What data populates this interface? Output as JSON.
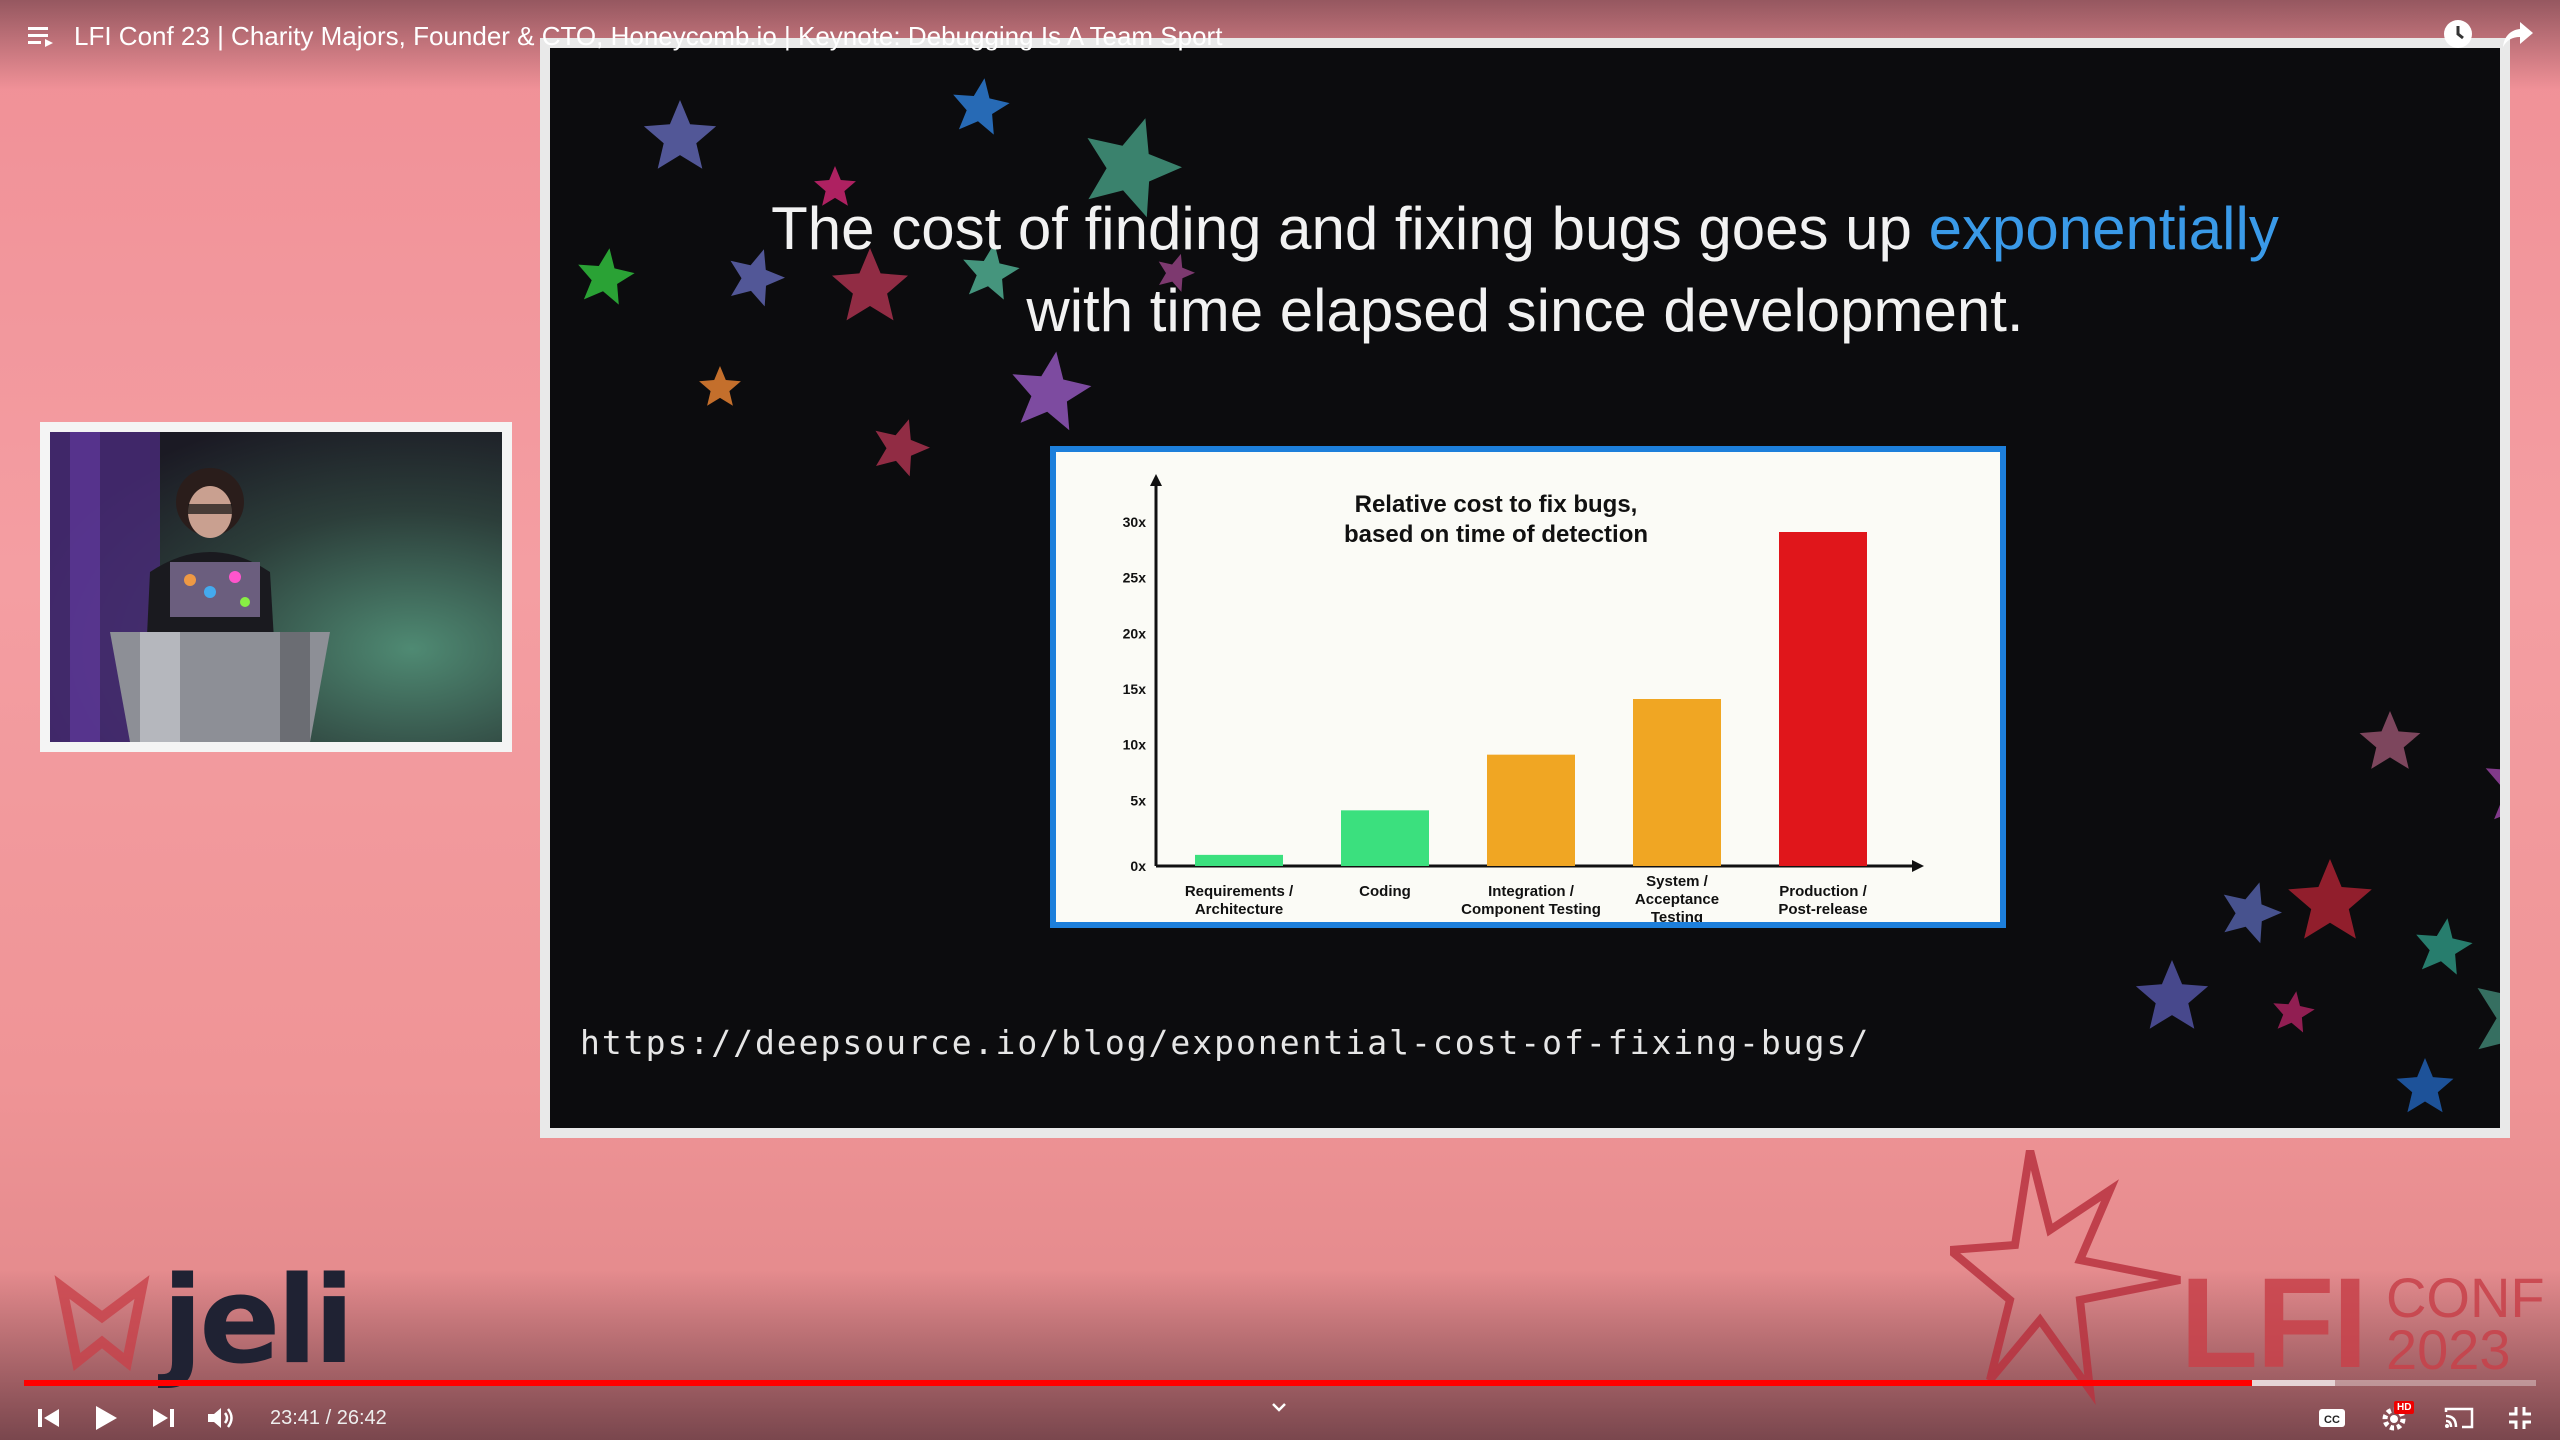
{
  "player": {
    "title": "LFI Conf 23 | Charity Majors, Founder & CTO, Honeycomb.io | Keynote: Debugging Is A Team Sport",
    "current_time": "23:41",
    "duration": "26:42",
    "time_display": "23:41 / 26:42",
    "progress_fraction": 0.887,
    "buffered_fraction": 0.92,
    "hd_badge": "HD",
    "icons": {
      "playlist": "playlist-icon",
      "watch_later": "clock-icon",
      "share": "share-icon",
      "previous": "skip-previous-icon",
      "play": "play-icon",
      "next": "skip-next-icon",
      "volume": "volume-icon",
      "chapters": "chevron-down-icon",
      "captions": "captions-icon",
      "settings": "gear-icon",
      "cast": "cast-icon",
      "exit_fullscreen": "exit-fullscreen-icon"
    },
    "colors": {
      "progress": "#ff0000"
    }
  },
  "slide": {
    "headline_part1": "The cost of finding and fixing bugs goes up ",
    "headline_accent": "exponentially",
    "headline_part2": "with time elapsed since development.",
    "url": "https://deepsource.io/blog/exponential-cost-of-fixing-bugs/",
    "colors": {
      "accent": "#3a9ae8",
      "chart_border": "#1d7fdb"
    }
  },
  "branding": {
    "left_logo": "jeli",
    "right_logo_main": "LFI",
    "right_logo_conf": "CONF",
    "right_logo_year": "2023"
  },
  "chart_data": {
    "type": "bar",
    "title_line1": "Relative cost to fix bugs,",
    "title_line2": "based on time of detection",
    "categories": [
      [
        "Requirements /",
        "Architecture"
      ],
      [
        "Coding"
      ],
      [
        "Integration /",
        "Component Testing"
      ],
      [
        "System /",
        "Acceptance",
        "Testing"
      ],
      [
        "Production /",
        "Post-release"
      ]
    ],
    "values": [
      1,
      5,
      10,
      15,
      30
    ],
    "colors": [
      "#3be07e",
      "#3be07e",
      "#f0a623",
      "#f0a623",
      "#e0161b"
    ],
    "y_ticks": [
      "0x",
      "5x",
      "10x",
      "15x",
      "20x",
      "25x",
      "30x"
    ],
    "ylim": [
      0,
      30
    ],
    "xlabel": "",
    "ylabel": ""
  }
}
